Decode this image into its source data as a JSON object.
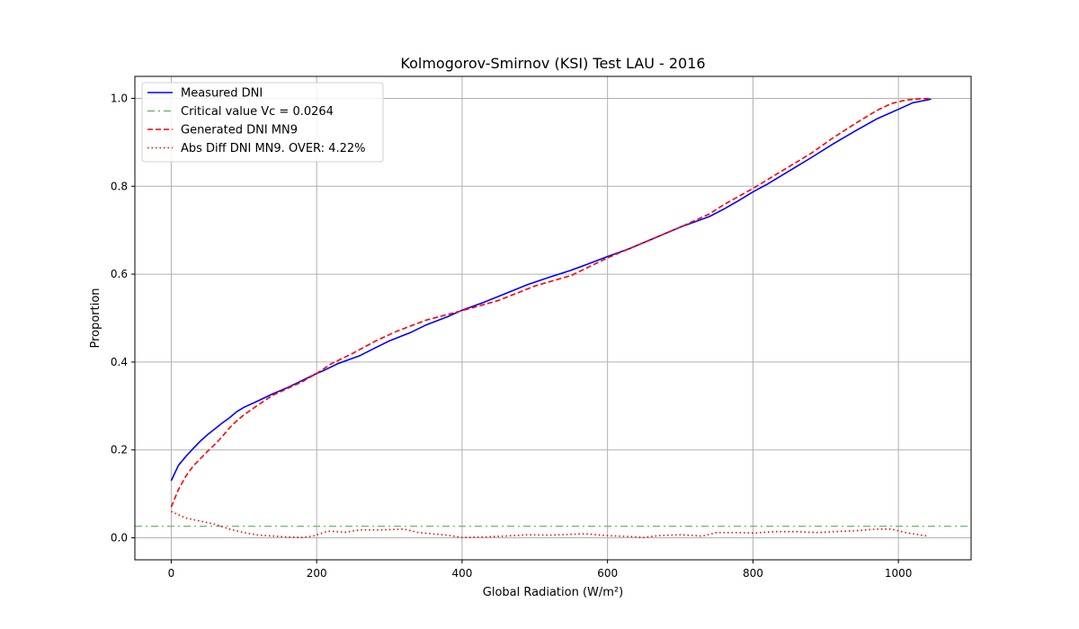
{
  "chart_data": {
    "type": "line",
    "title": "Kolmogorov-Smirnov (KSI) Test LAU - 2016",
    "xlabel": "Global Radiation (W/m²)",
    "ylabel": "Proportion",
    "xlim": [
      -50,
      1100
    ],
    "ylim": [
      -0.05,
      1.05
    ],
    "xticks": [
      0,
      200,
      400,
      600,
      800,
      1000
    ],
    "yticks": [
      0.0,
      0.2,
      0.4,
      0.6,
      0.8,
      1.0
    ],
    "xtick_labels": [
      "0",
      "200",
      "400",
      "600",
      "800",
      "1000"
    ],
    "ytick_labels": [
      "0.0",
      "0.2",
      "0.4",
      "0.6",
      "0.8",
      "1.0"
    ],
    "grid": true,
    "legend_position": "upper-left",
    "series": [
      {
        "name": "Measured DNI",
        "color": "#0000ff",
        "style": "solid",
        "x": [
          0,
          10,
          20,
          30,
          40,
          50,
          60,
          70,
          80,
          90,
          100,
          120,
          140,
          160,
          180,
          200,
          210,
          230,
          260,
          280,
          300,
          330,
          350,
          380,
          400,
          430,
          460,
          490,
          520,
          550,
          570,
          600,
          630,
          660,
          700,
          740,
          760,
          780,
          800,
          820,
          850,
          880,
          910,
          940,
          970,
          1000,
          1020,
          1045
        ],
        "y": [
          0.13,
          0.165,
          0.185,
          0.203,
          0.22,
          0.235,
          0.248,
          0.261,
          0.273,
          0.287,
          0.297,
          0.312,
          0.328,
          0.342,
          0.358,
          0.374,
          0.381,
          0.397,
          0.415,
          0.432,
          0.448,
          0.468,
          0.484,
          0.503,
          0.518,
          0.536,
          0.556,
          0.576,
          0.593,
          0.609,
          0.621,
          0.64,
          0.658,
          0.679,
          0.707,
          0.731,
          0.748,
          0.767,
          0.787,
          0.805,
          0.835,
          0.865,
          0.896,
          0.925,
          0.953,
          0.975,
          0.99,
          0.998
        ]
      },
      {
        "name": "Critical value Vc = 0.0264",
        "color": "#66bb66",
        "style": "dashdot",
        "x": [
          -50,
          1100
        ],
        "y": [
          0.0264,
          0.0264
        ]
      },
      {
        "name": "Generated DNI MN9",
        "color": "#ff0000",
        "style": "dashed",
        "x": [
          0,
          10,
          20,
          30,
          40,
          50,
          60,
          70,
          80,
          90,
          100,
          120,
          140,
          160,
          180,
          200,
          220,
          250,
          280,
          310,
          350,
          400,
          450,
          500,
          550,
          600,
          650,
          700,
          740,
          760,
          800,
          850,
          880,
          910,
          940,
          970,
          990,
          1010,
          1030,
          1045
        ],
        "y": [
          0.07,
          0.11,
          0.14,
          0.163,
          0.18,
          0.197,
          0.213,
          0.23,
          0.25,
          0.266,
          0.28,
          0.303,
          0.325,
          0.34,
          0.355,
          0.374,
          0.396,
          0.42,
          0.447,
          0.47,
          0.495,
          0.517,
          0.54,
          0.573,
          0.597,
          0.637,
          0.672,
          0.707,
          0.737,
          0.758,
          0.795,
          0.845,
          0.875,
          0.91,
          0.942,
          0.972,
          0.988,
          0.996,
          0.999,
          1.0
        ]
      },
      {
        "name": "Abs Diff DNI MN9. OVER: 4.22%",
        "color": "#ff0000",
        "style": "dotted",
        "x": [
          0,
          20,
          40,
          60,
          80,
          100,
          120,
          140,
          160,
          180,
          195,
          215,
          240,
          260,
          290,
          320,
          340,
          360,
          380,
          400,
          430,
          460,
          490,
          520,
          550,
          570,
          600,
          630,
          650,
          670,
          700,
          730,
          750,
          780,
          800,
          830,
          860,
          890,
          910,
          940,
          970,
          990,
          1010,
          1040
        ],
        "y": [
          0.06,
          0.045,
          0.038,
          0.031,
          0.02,
          0.012,
          0.006,
          0.004,
          0.002,
          0.001,
          0.004,
          0.015,
          0.013,
          0.018,
          0.018,
          0.02,
          0.012,
          0.009,
          0.006,
          0.001,
          0.002,
          0.004,
          0.007,
          0.006,
          0.008,
          0.009,
          0.005,
          0.003,
          0.001,
          0.005,
          0.007,
          0.004,
          0.012,
          0.012,
          0.011,
          0.014,
          0.014,
          0.012,
          0.014,
          0.016,
          0.02,
          0.02,
          0.012,
          0.004
        ]
      }
    ]
  }
}
